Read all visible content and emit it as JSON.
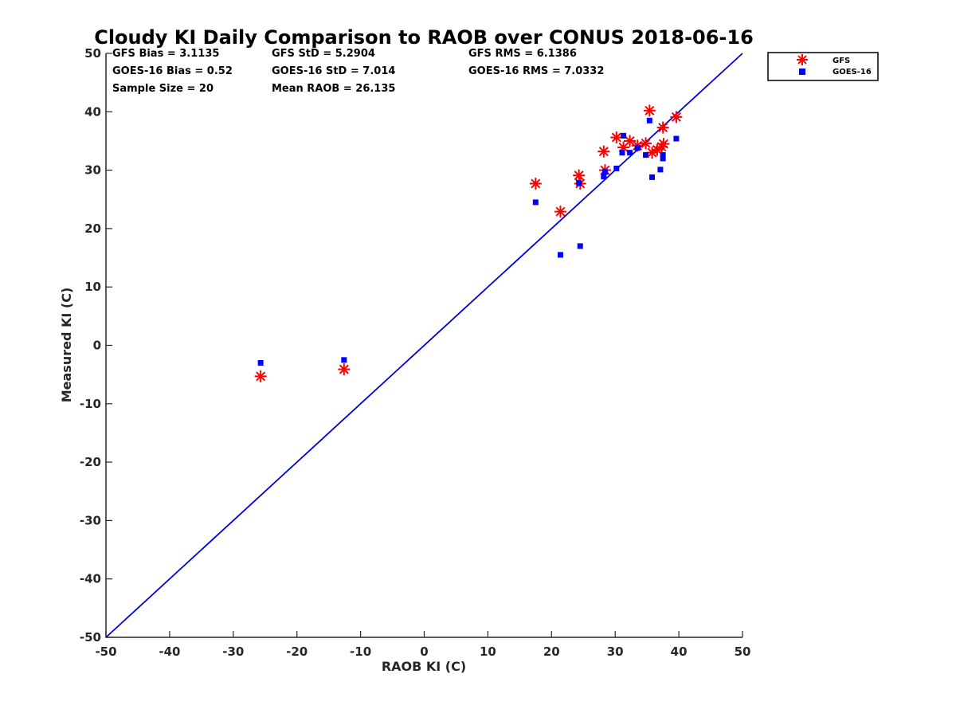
{
  "chart_data": {
    "type": "scatter",
    "title": "Cloudy KI Daily Comparison to RAOB over CONUS 2018-06-16",
    "xlabel": "RAOB KI (C)",
    "ylabel": "Measured KI (C)",
    "xlim": [
      -50,
      50
    ],
    "ylim": [
      -50,
      50
    ],
    "xticks": [
      "-50",
      "-40",
      "-30",
      "-20",
      "-10",
      "0",
      "10",
      "20",
      "30",
      "40",
      "50"
    ],
    "yticks": [
      "-50",
      "-40",
      "-30",
      "-20",
      "-10",
      "0",
      "10",
      "20",
      "30",
      "40",
      "50"
    ],
    "grid": false,
    "legend_position": "top-right, outside plot",
    "stats": {
      "gfs_bias": "GFS Bias = 3.1135",
      "gfs_std": "GFS StD = 5.2904",
      "gfs_rms": "GFS RMS = 6.1386",
      "goes_bias": "GOES-16 Bias = 0.52",
      "goes_std": "GOES-16 StD = 7.014",
      "goes_rms": "GOES-16 RMS = 7.0332",
      "sample_size": "Sample Size = 20",
      "mean_raob": "Mean RAOB = 26.135"
    },
    "reference_line": {
      "x": [
        -50,
        50
      ],
      "y": [
        -50,
        50
      ],
      "color": "#0000dd"
    },
    "series": [
      {
        "name": "GFS",
        "marker": "asterisk",
        "color": "#ff0000",
        "points": [
          [
            -25.7,
            -5.3
          ],
          [
            -12.6,
            -4.1
          ],
          [
            17.5,
            27.7
          ],
          [
            21.4,
            22.9
          ],
          [
            24.3,
            29.1
          ],
          [
            24.5,
            27.7
          ],
          [
            28.2,
            33.2
          ],
          [
            28.4,
            30.0
          ],
          [
            30.2,
            35.6
          ],
          [
            31.3,
            33.9
          ],
          [
            32.3,
            35.0
          ],
          [
            33.5,
            34.2
          ],
          [
            34.8,
            34.6
          ],
          [
            35.4,
            40.2
          ],
          [
            35.8,
            33.0
          ],
          [
            36.6,
            33.5
          ],
          [
            37.3,
            34.0
          ],
          [
            37.5,
            37.3
          ],
          [
            37.6,
            34.5
          ],
          [
            39.6,
            39.1
          ]
        ]
      },
      {
        "name": "GOES-16",
        "marker": "square",
        "color": "#0000ff",
        "points": [
          [
            -25.7,
            -3.0
          ],
          [
            -12.6,
            -2.5
          ],
          [
            17.5,
            24.5
          ],
          [
            21.4,
            15.5
          ],
          [
            24.3,
            27.8
          ],
          [
            24.5,
            17.0
          ],
          [
            28.2,
            28.9
          ],
          [
            28.4,
            29.7
          ],
          [
            30.2,
            30.3
          ],
          [
            31.1,
            33.0
          ],
          [
            31.3,
            35.9
          ],
          [
            32.3,
            33.0
          ],
          [
            33.5,
            33.8
          ],
          [
            34.8,
            32.6
          ],
          [
            35.4,
            38.5
          ],
          [
            35.8,
            28.8
          ],
          [
            37.1,
            30.1
          ],
          [
            37.5,
            32.0
          ],
          [
            37.5,
            32.6
          ],
          [
            39.6,
            35.4
          ]
        ]
      }
    ]
  }
}
